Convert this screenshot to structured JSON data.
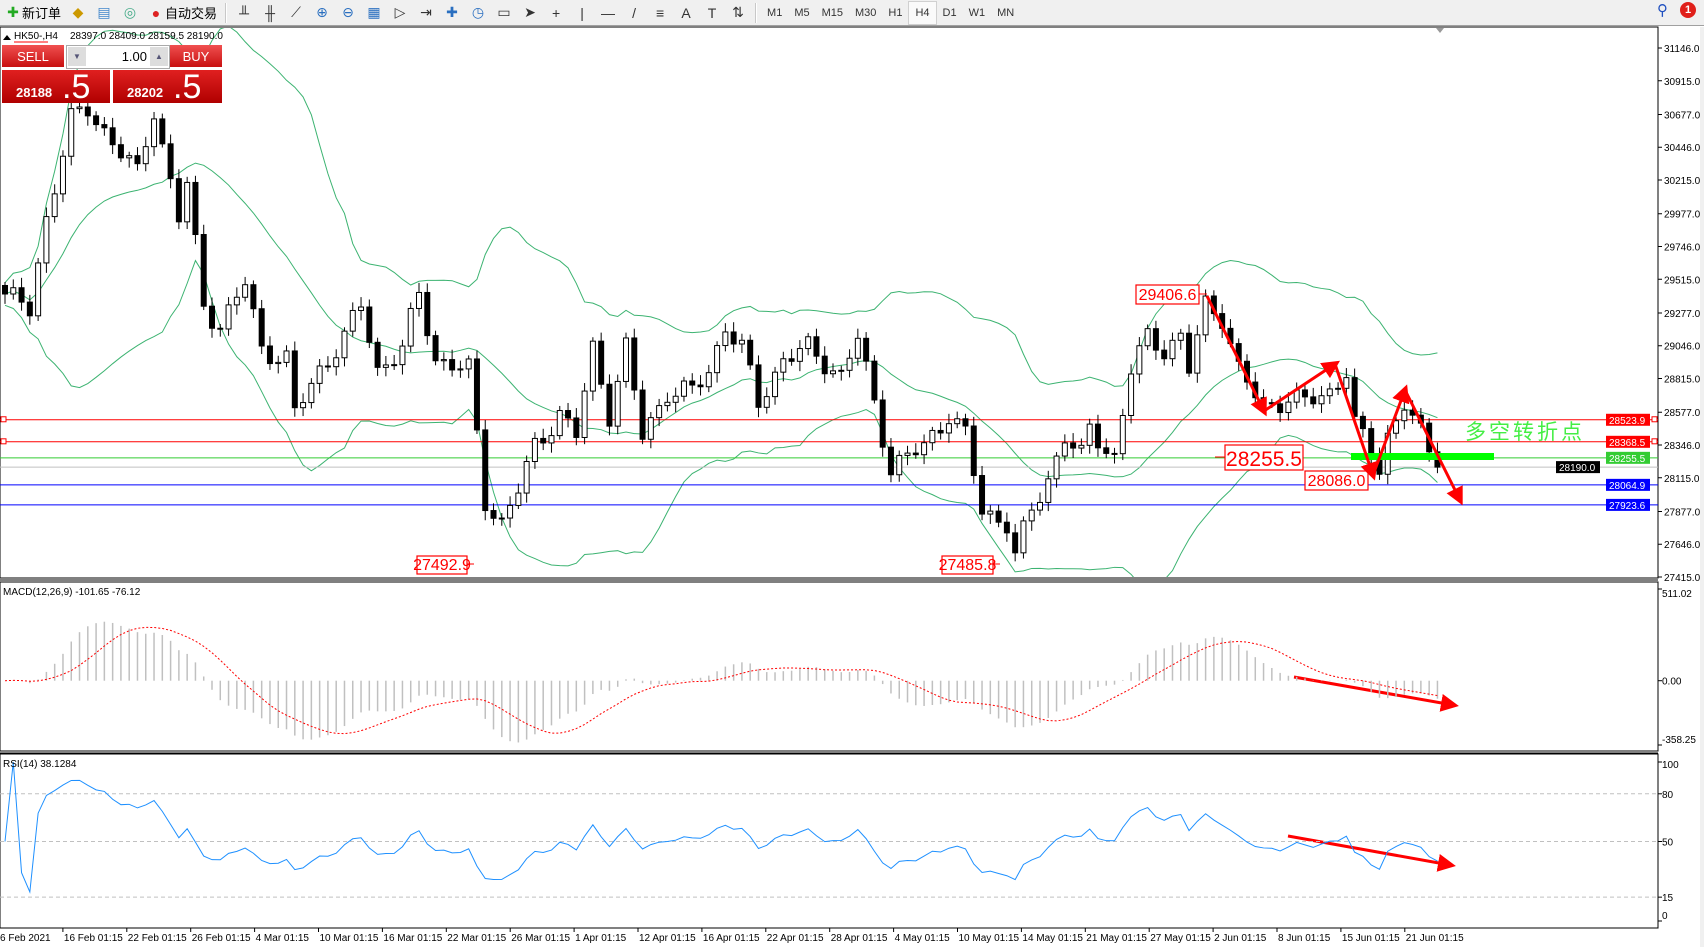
{
  "toolbar": {
    "new_order": "新订单",
    "auto_trading": "自动交易",
    "timeframes": [
      "M1",
      "M5",
      "M15",
      "M30",
      "H1",
      "H4",
      "D1",
      "W1",
      "MN"
    ],
    "active_timeframe": "H4",
    "notification_count": "1",
    "icons": [
      "chart-bars-icon",
      "candlesticks-icon",
      "line-chart-icon",
      "zoom-in-icon",
      "zoom-out-icon",
      "tile-windows-icon",
      "auto-scroll-icon",
      "chart-shift-icon",
      "indicators-icon",
      "periods-icon",
      "templates-icon",
      "cursor-icon",
      "crosshair-icon",
      "vertical-line-icon",
      "horizontal-line-icon",
      "trendline-icon",
      "fibonacci-icon",
      "text-icon",
      "text-label-icon",
      "arrows-icon"
    ]
  },
  "chart_header": {
    "symbol": "HK50-,H4",
    "ohlc": "28397.0 28409.0 28159.5 28190.0"
  },
  "trade_panel": {
    "sell_label": "SELL",
    "buy_label": "BUY",
    "lot": "1.00",
    "sell_price_main": "28188",
    "sell_price_frac": ".5",
    "buy_price_main": "28202",
    "buy_price_frac": ".5"
  },
  "price_axis": {
    "ticks": [
      "31146.0",
      "30915.0",
      "30677.0",
      "30446.0",
      "30215.0",
      "29977.0",
      "29746.0",
      "29515.0",
      "29277.0",
      "29046.0",
      "28815.0",
      "28577.0",
      "28346.0",
      "28115.0",
      "27877.0",
      "27646.0",
      "27415.0"
    ],
    "range": [
      27415.0,
      31146.0
    ]
  },
  "levels": [
    {
      "price": "28523.9",
      "color": "#ff0000",
      "label_bg": "#ff0000"
    },
    {
      "price": "28368.5",
      "color": "#ff0000",
      "label_bg": "#ff0000"
    },
    {
      "price": "28255.5",
      "color": "#33cc33",
      "label_bg": "#33cc33"
    },
    {
      "price": "28190.0",
      "color": "#c0c0c0",
      "label_bg": "#000000"
    },
    {
      "price": "28064.9",
      "color": "#0000ff",
      "label_bg": "#0000ff"
    },
    {
      "price": "27923.6",
      "color": "#0000ff",
      "label_bg": "#0000ff"
    }
  ],
  "annotations": {
    "high_label": "29406.6",
    "pivot_label": "28255.5",
    "low_label_recent": "28086.0",
    "low_label_march": "27492.9",
    "low_label_may": "27485.8",
    "pivot_text": "多空转折点",
    "arrow_color": "#ff0000",
    "pivot_color": "#00ff00"
  },
  "macd": {
    "header": "MACD(12,26,9) -101.65 -76.12",
    "ticks": [
      "511.02",
      "0.00",
      "-358.25"
    ],
    "range": [
      -358.25,
      511.02
    ]
  },
  "rsi": {
    "header": "RSI(14) 38.1284",
    "ticks": [
      "100",
      "80",
      "50",
      "15",
      "0"
    ],
    "levels": [
      80,
      50,
      15
    ]
  },
  "time_axis": [
    "6 Feb 2021",
    "16 Feb 01:15",
    "22 Feb 01:15",
    "26 Feb 01:15",
    "4 Mar 01:15",
    "10 Mar 01:15",
    "16 Mar 01:15",
    "22 Mar 01:15",
    "26 Mar 01:15",
    "1 Apr 01:15",
    "12 Apr 01:15",
    "16 Apr 01:15",
    "22 Apr 01:15",
    "28 Apr 01:15",
    "4 May 01:15",
    "10 May 01:15",
    "14 May 01:15",
    "21 May 01:15",
    "27 May 01:15",
    "2 Jun 01:15",
    "8 Jun 01:15",
    "15 Jun 01:15",
    "21 Jun 01:15"
  ],
  "chart_data": {
    "type": "candlestick",
    "symbol": "HK50-",
    "timeframe": "H4",
    "indicators": [
      "Bollinger Bands",
      "MACD(12,26,9)",
      "RSI(14)"
    ],
    "approx_close_path": [
      [
        0,
        29411
      ],
      [
        3,
        29296
      ],
      [
        5,
        29948
      ],
      [
        8,
        30639
      ],
      [
        10,
        30716
      ],
      [
        13,
        30486
      ],
      [
        16,
        30256
      ],
      [
        18,
        30716
      ],
      [
        21,
        29948
      ],
      [
        22,
        30179
      ],
      [
        24,
        29334
      ],
      [
        26,
        29181
      ],
      [
        29,
        29488
      ],
      [
        31,
        29027
      ],
      [
        34,
        28950
      ],
      [
        35,
        28567
      ],
      [
        38,
        28874
      ],
      [
        41,
        29104
      ],
      [
        43,
        29334
      ],
      [
        45,
        28874
      ],
      [
        48,
        29027
      ],
      [
        50,
        29411
      ],
      [
        52,
        28950
      ],
      [
        56,
        28874
      ],
      [
        57,
        28413
      ],
      [
        58,
        27953
      ],
      [
        60,
        27800
      ],
      [
        62,
        28030
      ],
      [
        64,
        28336
      ],
      [
        67,
        28567
      ],
      [
        69,
        28413
      ],
      [
        71,
        29027
      ],
      [
        73,
        28567
      ],
      [
        75,
        29027
      ],
      [
        77,
        28413
      ],
      [
        80,
        28720
      ],
      [
        83,
        28720
      ],
      [
        85,
        28874
      ],
      [
        87,
        29181
      ],
      [
        89,
        29027
      ],
      [
        91,
        28643
      ],
      [
        94,
        28950
      ],
      [
        97,
        29027
      ],
      [
        101,
        28835
      ],
      [
        103,
        29104
      ],
      [
        105,
        28643
      ],
      [
        107,
        28183
      ],
      [
        109,
        28260
      ],
      [
        111,
        28336
      ],
      [
        114,
        28567
      ],
      [
        116,
        28413
      ],
      [
        118,
        27876
      ],
      [
        121,
        27800
      ],
      [
        122,
        27570
      ],
      [
        124,
        27876
      ],
      [
        126,
        28106
      ],
      [
        128,
        28413
      ],
      [
        130,
        28260
      ],
      [
        131,
        28452
      ],
      [
        134,
        28260
      ],
      [
        136,
        28874
      ],
      [
        138,
        29104
      ],
      [
        140,
        29027
      ],
      [
        142,
        29104
      ],
      [
        143,
        28874
      ],
      [
        145,
        29334
      ],
      [
        147,
        29258
      ],
      [
        149,
        28874
      ],
      [
        152,
        28605
      ],
      [
        155,
        28682
      ],
      [
        157,
        28643
      ],
      [
        160,
        28720
      ],
      [
        162,
        28874
      ],
      [
        163,
        28490
      ],
      [
        166,
        28183
      ],
      [
        167,
        28413
      ],
      [
        169,
        28643
      ],
      [
        171,
        28413
      ],
      [
        173,
        28190
      ]
    ]
  }
}
